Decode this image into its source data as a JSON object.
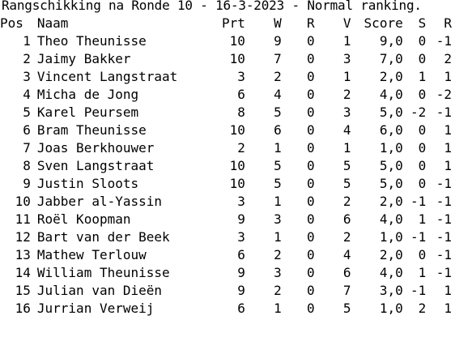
{
  "title": "Rangschikking na Ronde 10 - 16-3-2023 - Normal ranking.",
  "columns": [
    "Pos",
    "Naam",
    "Prt",
    "W",
    "R",
    "V",
    "Score",
    "S",
    "R"
  ],
  "rows": [
    [
      "1",
      "Theo Theunisse",
      "10",
      "9",
      "0",
      "1",
      "9,0",
      "0",
      "-1"
    ],
    [
      "2",
      "Jaimy Bakker",
      "10",
      "7",
      "0",
      "3",
      "7,0",
      "0",
      "2"
    ],
    [
      "3",
      "Vincent Langstraat",
      "3",
      "2",
      "0",
      "1",
      "2,0",
      "1",
      "1"
    ],
    [
      "4",
      "Micha de Jong",
      "6",
      "4",
      "0",
      "2",
      "4,0",
      "0",
      "-2"
    ],
    [
      "5",
      "Karel Peursem",
      "8",
      "5",
      "0",
      "3",
      "5,0",
      "-2",
      "-1"
    ],
    [
      "6",
      "Bram Theunisse",
      "10",
      "6",
      "0",
      "4",
      "6,0",
      "0",
      "1"
    ],
    [
      "7",
      "Joas Berkhouwer",
      "2",
      "1",
      "0",
      "1",
      "1,0",
      "0",
      "1"
    ],
    [
      "8",
      "Sven Langstraat",
      "10",
      "5",
      "0",
      "5",
      "5,0",
      "0",
      "1"
    ],
    [
      "9",
      "Justin Sloots",
      "10",
      "5",
      "0",
      "5",
      "5,0",
      "0",
      "-1"
    ],
    [
      "10",
      "Jabber al-Yassin",
      "3",
      "1",
      "0",
      "2",
      "2,0",
      "-1",
      "-1"
    ],
    [
      "11",
      "Roël Koopman",
      "9",
      "3",
      "0",
      "6",
      "4,0",
      "1",
      "-1"
    ],
    [
      "12",
      "Bart van der Beek",
      "3",
      "1",
      "0",
      "2",
      "1,0",
      "-1",
      "-1"
    ],
    [
      "13",
      "Mathew Terlouw",
      "6",
      "2",
      "0",
      "4",
      "2,0",
      "0",
      "-1"
    ],
    [
      "14",
      "William Theunisse",
      "9",
      "3",
      "0",
      "6",
      "4,0",
      "1",
      "-1"
    ],
    [
      "15",
      "Julian van Dieën",
      "9",
      "2",
      "0",
      "7",
      "3,0",
      "-1",
      "1"
    ],
    [
      "16",
      "Jurrian Verweij",
      "6",
      "1",
      "0",
      "5",
      "1,0",
      "2",
      "1"
    ]
  ]
}
